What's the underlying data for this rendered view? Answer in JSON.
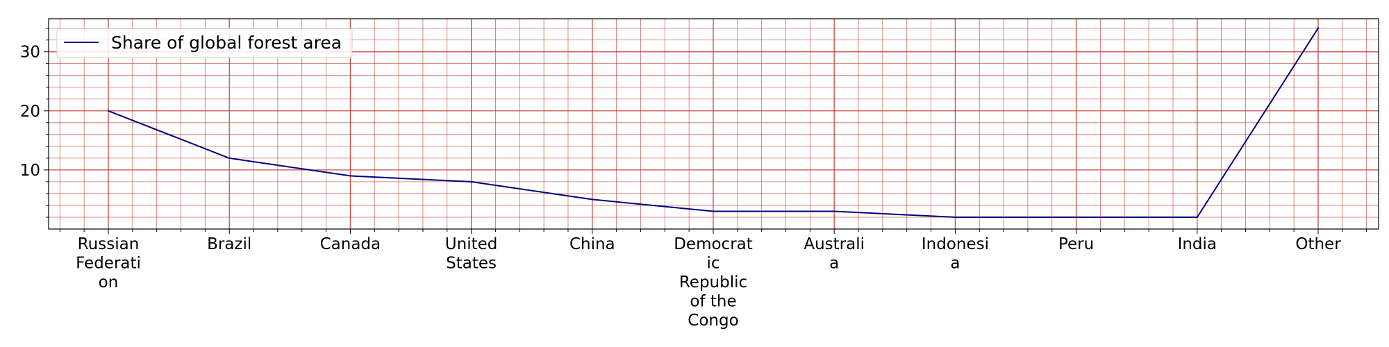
{
  "chart_data": {
    "type": "line",
    "categories": [
      "Russian Federation",
      "Brazil",
      "Canada",
      "United States",
      "China",
      "Democratic Republic of the Congo",
      "Australia",
      "Indonesia",
      "Peru",
      "India",
      "Other"
    ],
    "category_label_lines": [
      [
        "Russian",
        "Federati",
        "on"
      ],
      [
        "Brazil"
      ],
      [
        "Canada"
      ],
      [
        "United",
        "States"
      ],
      [
        "China"
      ],
      [
        "Democrat",
        "ic",
        "Republic",
        "of the",
        "Congo"
      ],
      [
        "Australi",
        "a"
      ],
      [
        "Indonesi",
        "a"
      ],
      [
        "Peru"
      ],
      [
        "India"
      ],
      [
        "Other"
      ]
    ],
    "series": [
      {
        "name": "Share of global forest area",
        "values": [
          20,
          12,
          9,
          8,
          5,
          3,
          3,
          2,
          2,
          2,
          34
        ],
        "color": "#000080"
      }
    ],
    "ylim": [
      0,
      35.6
    ],
    "yticks": [
      "10",
      "20",
      "30"
    ],
    "y_minor_step": 2,
    "x_minor_per_category": 5,
    "grid": true,
    "grid_color": "#c0392b",
    "legend": "top-left",
    "title": "",
    "xlabel": "",
    "ylabel": ""
  }
}
